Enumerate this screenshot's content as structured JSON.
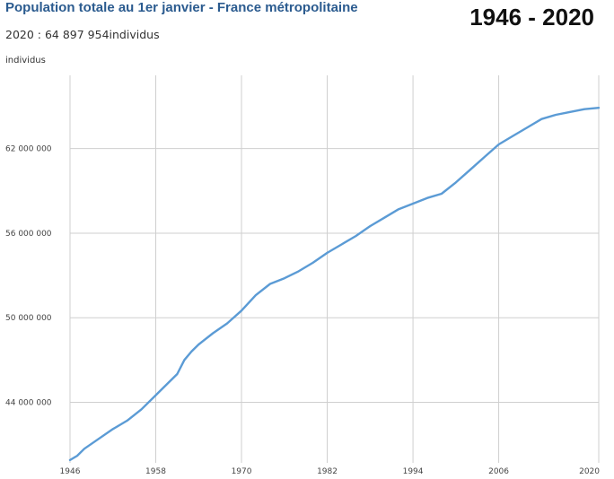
{
  "chart_data": {
    "type": "line",
    "title": "Population totale au 1er janvier - France métropolitaine",
    "subtitle": "2020 : 64 897 954individus",
    "period": "1946 - 2020",
    "ylabel": "individus",
    "xlabel": "",
    "xlim": [
      1946,
      2020
    ],
    "ylim": [
      39700000,
      67200000
    ],
    "grid": true,
    "x_ticks": [
      {
        "value": 1946,
        "label": "1946"
      },
      {
        "value": 1958,
        "label": "1958"
      },
      {
        "value": 1970,
        "label": "1970"
      },
      {
        "value": 1982,
        "label": "1982"
      },
      {
        "value": 1994,
        "label": "1994"
      },
      {
        "value": 2006,
        "label": "2006"
      },
      {
        "value": 2020,
        "label": "2020"
      }
    ],
    "y_ticks": [
      {
        "value": 44000000,
        "label": "44 000 000"
      },
      {
        "value": 50000000,
        "label": "50 000 000"
      },
      {
        "value": 56000000,
        "label": "56 000 000"
      },
      {
        "value": 62000000,
        "label": "62 000 000"
      }
    ],
    "series": [
      {
        "color": "#5b9bd5",
        "x": [
          1946,
          1947,
          1948,
          1950,
          1952,
          1954,
          1956,
          1958,
          1960,
          1961,
          1962,
          1963,
          1964,
          1966,
          1968,
          1970,
          1972,
          1974,
          1976,
          1978,
          1980,
          1982,
          1984,
          1986,
          1988,
          1990,
          1992,
          1994,
          1996,
          1998,
          2000,
          2002,
          2004,
          2006,
          2008,
          2010,
          2012,
          2014,
          2016,
          2018,
          2020
        ],
        "y": [
          39900000,
          40200000,
          40700000,
          41400000,
          42100000,
          42700000,
          43500000,
          44500000,
          45500000,
          46000000,
          47000000,
          47600000,
          48100000,
          48900000,
          49600000,
          50500000,
          51600000,
          52400000,
          52800000,
          53300000,
          53900000,
          54600000,
          55200000,
          55800000,
          56500000,
          57100000,
          57700000,
          58100000,
          58500000,
          58800000,
          59600000,
          60500000,
          61400000,
          62300000,
          62900000,
          63500000,
          64100000,
          64400000,
          64600000,
          64800000,
          64897954
        ]
      }
    ]
  }
}
